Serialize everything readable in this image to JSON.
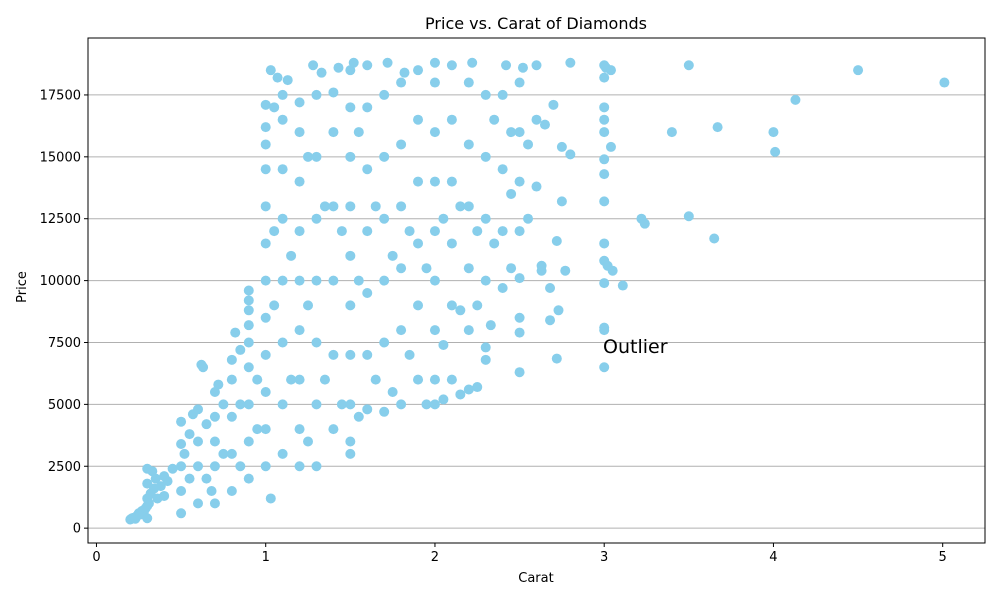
{
  "chart_data": {
    "type": "scatter",
    "title": "Price vs. Carat of Diamonds",
    "xlabel": "Carat",
    "ylabel": "Price",
    "xlim": [
      -0.05,
      5.25
    ],
    "ylim": [
      -600,
      19800
    ],
    "xticks": [
      0,
      1,
      2,
      3,
      4,
      5
    ],
    "yticks": [
      0,
      2500,
      5000,
      7500,
      10000,
      12500,
      15000,
      17500
    ],
    "grid": "horizontal",
    "marker_color": "#87CEEB",
    "annotations": [
      {
        "text": "Outlier",
        "x": 3.0,
        "y": 7200
      }
    ],
    "series": [
      {
        "points": [
          [
            0.2,
            350
          ],
          [
            0.21,
            400
          ],
          [
            0.22,
            420
          ],
          [
            0.23,
            380
          ],
          [
            0.24,
            500
          ],
          [
            0.25,
            600
          ],
          [
            0.26,
            550
          ],
          [
            0.27,
            700
          ],
          [
            0.28,
            650
          ],
          [
            0.29,
            800
          ],
          [
            0.3,
            400
          ],
          [
            0.3,
            900
          ],
          [
            0.3,
            1200
          ],
          [
            0.3,
            1800
          ],
          [
            0.3,
            2400
          ],
          [
            0.31,
            1000
          ],
          [
            0.32,
            1400
          ],
          [
            0.33,
            2300
          ],
          [
            0.34,
            1600
          ],
          [
            0.35,
            2000
          ],
          [
            0.36,
            1200
          ],
          [
            0.38,
            1700
          ],
          [
            0.4,
            1300
          ],
          [
            0.4,
            2100
          ],
          [
            0.42,
            1900
          ],
          [
            0.45,
            2400
          ],
          [
            0.5,
            600
          ],
          [
            0.5,
            1500
          ],
          [
            0.5,
            2500
          ],
          [
            0.5,
            3400
          ],
          [
            0.5,
            4300
          ],
          [
            0.52,
            3000
          ],
          [
            0.55,
            2000
          ],
          [
            0.55,
            3800
          ],
          [
            0.57,
            4600
          ],
          [
            0.6,
            1000
          ],
          [
            0.6,
            2500
          ],
          [
            0.6,
            3500
          ],
          [
            0.6,
            4800
          ],
          [
            0.62,
            6600
          ],
          [
            0.63,
            6500
          ],
          [
            0.65,
            2000
          ],
          [
            0.65,
            4200
          ],
          [
            0.68,
            1500
          ],
          [
            0.7,
            1000
          ],
          [
            0.7,
            2500
          ],
          [
            0.7,
            3500
          ],
          [
            0.7,
            4500
          ],
          [
            0.7,
            5500
          ],
          [
            0.72,
            5800
          ],
          [
            0.75,
            3000
          ],
          [
            0.75,
            5000
          ],
          [
            0.8,
            1500
          ],
          [
            0.8,
            3000
          ],
          [
            0.8,
            4500
          ],
          [
            0.8,
            6000
          ],
          [
            0.8,
            6800
          ],
          [
            0.82,
            7900
          ],
          [
            0.85,
            2500
          ],
          [
            0.85,
            5000
          ],
          [
            0.85,
            7200
          ],
          [
            0.9,
            2000
          ],
          [
            0.9,
            3500
          ],
          [
            0.9,
            5000
          ],
          [
            0.9,
            6500
          ],
          [
            0.9,
            7500
          ],
          [
            0.9,
            8200
          ],
          [
            0.9,
            8800
          ],
          [
            0.9,
            9200
          ],
          [
            0.9,
            9600
          ],
          [
            0.95,
            4000
          ],
          [
            0.95,
            6000
          ],
          [
            1.0,
            2500
          ],
          [
            1.0,
            4000
          ],
          [
            1.0,
            5500
          ],
          [
            1.0,
            7000
          ],
          [
            1.0,
            8500
          ],
          [
            1.0,
            10000
          ],
          [
            1.0,
            11500
          ],
          [
            1.0,
            13000
          ],
          [
            1.0,
            14500
          ],
          [
            1.0,
            15500
          ],
          [
            1.0,
            16200
          ],
          [
            1.0,
            17100
          ],
          [
            1.03,
            1200
          ],
          [
            1.03,
            18500
          ],
          [
            1.05,
            9000
          ],
          [
            1.05,
            12000
          ],
          [
            1.05,
            17000
          ],
          [
            1.07,
            18200
          ],
          [
            1.1,
            3000
          ],
          [
            1.1,
            5000
          ],
          [
            1.1,
            7500
          ],
          [
            1.1,
            10000
          ],
          [
            1.1,
            12500
          ],
          [
            1.1,
            14500
          ],
          [
            1.1,
            16500
          ],
          [
            1.1,
            17500
          ],
          [
            1.13,
            18100
          ],
          [
            1.15,
            6000
          ],
          [
            1.15,
            11000
          ],
          [
            1.2,
            2500
          ],
          [
            1.2,
            4000
          ],
          [
            1.2,
            6000
          ],
          [
            1.2,
            8000
          ],
          [
            1.2,
            10000
          ],
          [
            1.2,
            12000
          ],
          [
            1.2,
            14000
          ],
          [
            1.2,
            16000
          ],
          [
            1.2,
            17200
          ],
          [
            1.25,
            3500
          ],
          [
            1.25,
            9000
          ],
          [
            1.25,
            15000
          ],
          [
            1.28,
            18700
          ],
          [
            1.3,
            2500
          ],
          [
            1.3,
            5000
          ],
          [
            1.3,
            7500
          ],
          [
            1.3,
            10000
          ],
          [
            1.3,
            12500
          ],
          [
            1.3,
            15000
          ],
          [
            1.3,
            17500
          ],
          [
            1.33,
            18400
          ],
          [
            1.35,
            6000
          ],
          [
            1.35,
            13000
          ],
          [
            1.4,
            4000
          ],
          [
            1.4,
            7000
          ],
          [
            1.4,
            10000
          ],
          [
            1.4,
            13000
          ],
          [
            1.4,
            16000
          ],
          [
            1.4,
            17600
          ],
          [
            1.43,
            18600
          ],
          [
            1.45,
            5000
          ],
          [
            1.45,
            12000
          ],
          [
            1.5,
            3000
          ],
          [
            1.5,
            3500
          ],
          [
            1.5,
            5000
          ],
          [
            1.5,
            7000
          ],
          [
            1.5,
            9000
          ],
          [
            1.5,
            11000
          ],
          [
            1.5,
            13000
          ],
          [
            1.5,
            15000
          ],
          [
            1.5,
            17000
          ],
          [
            1.5,
            18500
          ],
          [
            1.52,
            18800
          ],
          [
            1.55,
            4500
          ],
          [
            1.55,
            10000
          ],
          [
            1.55,
            16000
          ],
          [
            1.6,
            4800
          ],
          [
            1.6,
            7000
          ],
          [
            1.6,
            9500
          ],
          [
            1.6,
            12000
          ],
          [
            1.6,
            14500
          ],
          [
            1.6,
            17000
          ],
          [
            1.6,
            18700
          ],
          [
            1.65,
            6000
          ],
          [
            1.65,
            13000
          ],
          [
            1.7,
            4700
          ],
          [
            1.7,
            7500
          ],
          [
            1.7,
            10000
          ],
          [
            1.7,
            12500
          ],
          [
            1.7,
            15000
          ],
          [
            1.7,
            17500
          ],
          [
            1.72,
            18800
          ],
          [
            1.75,
            5500
          ],
          [
            1.75,
            11000
          ],
          [
            1.8,
            5000
          ],
          [
            1.8,
            8000
          ],
          [
            1.8,
            10500
          ],
          [
            1.8,
            13000
          ],
          [
            1.8,
            15500
          ],
          [
            1.8,
            18000
          ],
          [
            1.82,
            18400
          ],
          [
            1.85,
            7000
          ],
          [
            1.85,
            12000
          ],
          [
            1.9,
            6000
          ],
          [
            1.9,
            9000
          ],
          [
            1.9,
            11500
          ],
          [
            1.9,
            14000
          ],
          [
            1.9,
            16500
          ],
          [
            1.9,
            18500
          ],
          [
            1.95,
            5000
          ],
          [
            1.95,
            10500
          ],
          [
            2.0,
            5000
          ],
          [
            2.0,
            6000
          ],
          [
            2.0,
            8000
          ],
          [
            2.0,
            10000
          ],
          [
            2.0,
            12000
          ],
          [
            2.0,
            14000
          ],
          [
            2.0,
            16000
          ],
          [
            2.0,
            18000
          ],
          [
            2.0,
            18800
          ],
          [
            2.05,
            5200
          ],
          [
            2.05,
            7400
          ],
          [
            2.05,
            12500
          ],
          [
            2.1,
            6000
          ],
          [
            2.1,
            9000
          ],
          [
            2.1,
            11500
          ],
          [
            2.1,
            14000
          ],
          [
            2.1,
            16500
          ],
          [
            2.1,
            18700
          ],
          [
            2.15,
            5400
          ],
          [
            2.15,
            8800
          ],
          [
            2.15,
            13000
          ],
          [
            2.2,
            5600
          ],
          [
            2.2,
            8000
          ],
          [
            2.2,
            10500
          ],
          [
            2.2,
            13000
          ],
          [
            2.2,
            15500
          ],
          [
            2.2,
            18000
          ],
          [
            2.22,
            18800
          ],
          [
            2.25,
            5700
          ],
          [
            2.25,
            9000
          ],
          [
            2.25,
            12000
          ],
          [
            2.3,
            6800
          ],
          [
            2.3,
            7300
          ],
          [
            2.3,
            10000
          ],
          [
            2.3,
            12500
          ],
          [
            2.3,
            15000
          ],
          [
            2.3,
            17500
          ],
          [
            2.33,
            8200
          ],
          [
            2.35,
            11500
          ],
          [
            2.35,
            16500
          ],
          [
            2.4,
            9700
          ],
          [
            2.4,
            12000
          ],
          [
            2.4,
            14500
          ],
          [
            2.4,
            17500
          ],
          [
            2.42,
            18700
          ],
          [
            2.45,
            10500
          ],
          [
            2.45,
            13500
          ],
          [
            2.45,
            16000
          ],
          [
            2.5,
            6300
          ],
          [
            2.5,
            7900
          ],
          [
            2.5,
            8500
          ],
          [
            2.5,
            10100
          ],
          [
            2.5,
            12000
          ],
          [
            2.5,
            14000
          ],
          [
            2.5,
            16000
          ],
          [
            2.5,
            18000
          ],
          [
            2.52,
            18600
          ],
          [
            2.55,
            12500
          ],
          [
            2.55,
            15500
          ],
          [
            2.6,
            13800
          ],
          [
            2.6,
            16500
          ],
          [
            2.6,
            18700
          ],
          [
            2.63,
            10400
          ],
          [
            2.63,
            10600
          ],
          [
            2.65,
            16300
          ],
          [
            2.68,
            8400
          ],
          [
            2.68,
            9700
          ],
          [
            2.7,
            17100
          ],
          [
            2.72,
            6850
          ],
          [
            2.72,
            11600
          ],
          [
            2.73,
            8800
          ],
          [
            2.75,
            13200
          ],
          [
            2.75,
            15400
          ],
          [
            2.77,
            10400
          ],
          [
            2.8,
            15100
          ],
          [
            2.8,
            18800
          ],
          [
            3.0,
            6500
          ],
          [
            3.0,
            8000
          ],
          [
            3.0,
            8100
          ],
          [
            3.0,
            9900
          ],
          [
            3.0,
            10800
          ],
          [
            3.0,
            11500
          ],
          [
            3.0,
            13200
          ],
          [
            3.0,
            14300
          ],
          [
            3.0,
            14900
          ],
          [
            3.0,
            16000
          ],
          [
            3.0,
            16500
          ],
          [
            3.0,
            17000
          ],
          [
            3.0,
            18200
          ],
          [
            3.0,
            18700
          ],
          [
            3.01,
            18600
          ],
          [
            3.02,
            10600
          ],
          [
            3.04,
            18500
          ],
          [
            3.04,
            15400
          ],
          [
            3.05,
            10400
          ],
          [
            3.11,
            9800
          ],
          [
            3.22,
            12500
          ],
          [
            3.24,
            12300
          ],
          [
            3.4,
            16000
          ],
          [
            3.5,
            12600
          ],
          [
            3.5,
            18700
          ],
          [
            3.65,
            11700
          ],
          [
            3.67,
            16200
          ],
          [
            4.0,
            16000
          ],
          [
            4.01,
            15200
          ],
          [
            4.13,
            17300
          ],
          [
            4.5,
            18500
          ],
          [
            5.01,
            18000
          ]
        ]
      }
    ]
  }
}
